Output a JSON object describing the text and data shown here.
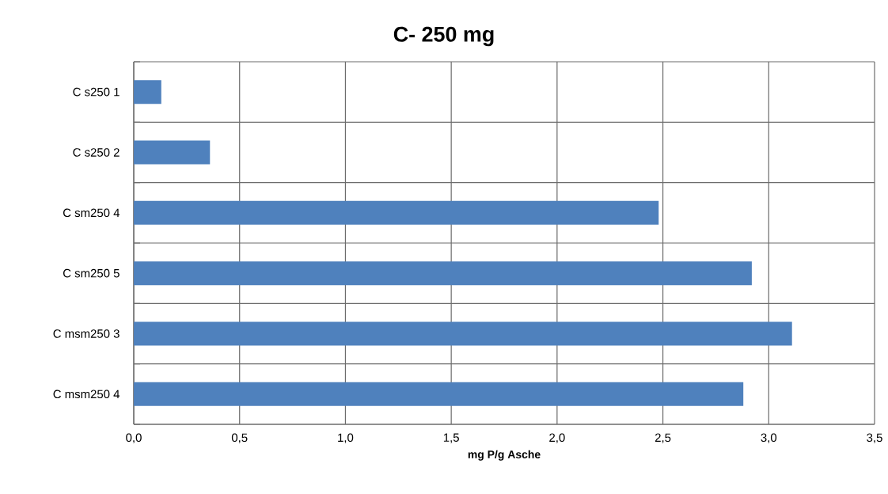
{
  "chart_data": {
    "type": "bar",
    "orientation": "horizontal",
    "title": "C- 250 mg",
    "xlabel": "mg P/g Asche",
    "categories": [
      "C s250 1",
      "C s250 2",
      "C sm250 4",
      "C sm250 5",
      "C msm250 3",
      "C msm250 4"
    ],
    "values": [
      0.13,
      0.36,
      2.48,
      2.92,
      3.11,
      2.88
    ],
    "color": "#4f81bd",
    "xlim": [
      0,
      3.5
    ],
    "xticks": [
      {
        "value": 0,
        "label": "0,0"
      },
      {
        "value": 0.5,
        "label": "0,5"
      },
      {
        "value": 1,
        "label": "1,0"
      },
      {
        "value": 1.5,
        "label": "1,5"
      },
      {
        "value": 2,
        "label": "2,0"
      },
      {
        "value": 2.5,
        "label": "2,5"
      },
      {
        "value": 3,
        "label": "3,0"
      },
      {
        "value": 3.5,
        "label": "3,5"
      }
    ],
    "grid": true
  }
}
